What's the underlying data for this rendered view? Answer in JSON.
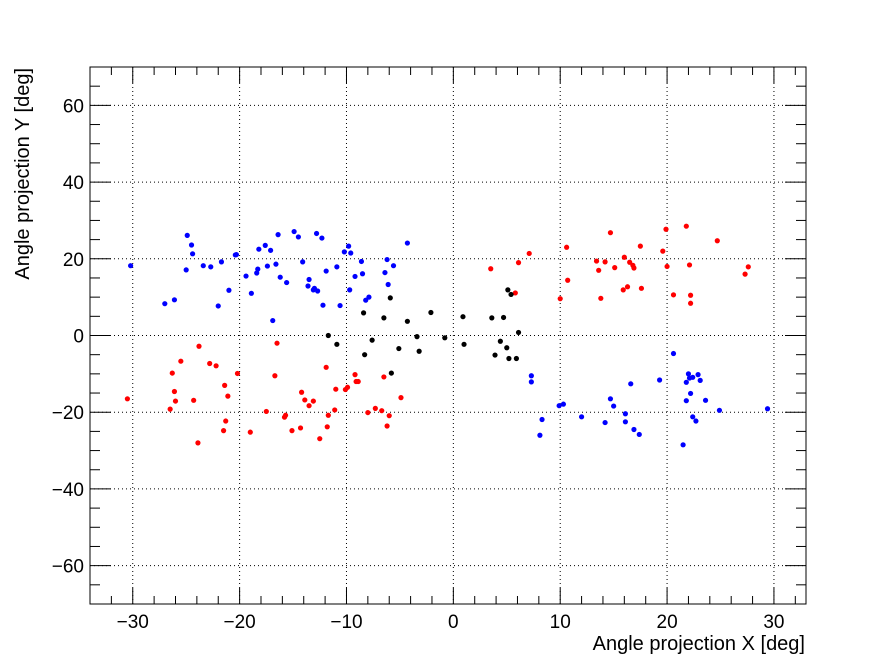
{
  "chart_data": {
    "type": "scatter",
    "title": "",
    "xlabel": "Angle projection X [deg]",
    "ylabel": "Angle projection Y [deg]",
    "xlim": [
      -34,
      33
    ],
    "ylim": [
      -70,
      70
    ],
    "x_ticks": [
      -30,
      -20,
      -10,
      0,
      10,
      20,
      30
    ],
    "y_ticks": [
      -60,
      -40,
      -20,
      0,
      20,
      40,
      60
    ],
    "x_tick_labels": [
      "−30",
      "−20",
      "−10",
      "0",
      "10",
      "20",
      "30"
    ],
    "y_tick_labels": [
      "−60",
      "−40",
      "−20",
      "0",
      "20",
      "40",
      "60"
    ],
    "grid": true,
    "colors": {
      "blue": "#0000ff",
      "red": "#ff0000",
      "black": "#000000"
    },
    "series": [
      {
        "color": "#0000ff",
        "points": [
          [
            -30.2,
            18.2
          ],
          [
            -27.0,
            8.3
          ],
          [
            -26.1,
            9.3
          ],
          [
            -25.0,
            17.1
          ],
          [
            -24.9,
            26.1
          ],
          [
            -24.5,
            23.6
          ],
          [
            -24.4,
            21.3
          ],
          [
            -23.4,
            18.2
          ],
          [
            -22.7,
            17.9
          ],
          [
            -22.0,
            7.7
          ],
          [
            -21.7,
            19.2
          ],
          [
            -21.0,
            11.8
          ],
          [
            -20.4,
            21.0
          ],
          [
            -20.3,
            21.1
          ],
          [
            -19.4,
            15.5
          ],
          [
            -18.9,
            11.0
          ],
          [
            -18.4,
            16.3
          ],
          [
            -18.3,
            17.3
          ],
          [
            -18.2,
            22.5
          ],
          [
            -17.6,
            23.5
          ],
          [
            -17.4,
            18.1
          ],
          [
            -17.1,
            22.2
          ],
          [
            -16.9,
            3.9
          ],
          [
            -16.6,
            18.6
          ],
          [
            -16.4,
            26.3
          ],
          [
            -16.2,
            15.2
          ],
          [
            -15.6,
            13.8
          ],
          [
            -14.9,
            27.1
          ],
          [
            -14.5,
            25.7
          ],
          [
            -14.1,
            19.2
          ],
          [
            -13.6,
            12.9
          ],
          [
            -13.5,
            14.6
          ],
          [
            -13.1,
            11.9
          ],
          [
            -13.0,
            12.3
          ],
          [
            -12.8,
            26.6
          ],
          [
            -12.7,
            11.6
          ],
          [
            -12.3,
            25.4
          ],
          [
            -12.2,
            7.9
          ],
          [
            -11.9,
            16.8
          ],
          [
            -10.9,
            17.9
          ],
          [
            -10.6,
            7.8
          ],
          [
            -10.2,
            21.8
          ],
          [
            -9.8,
            23.3
          ],
          [
            -9.7,
            11.9
          ],
          [
            -9.6,
            21.5
          ],
          [
            -9.2,
            15.4
          ],
          [
            -8.6,
            19.3
          ],
          [
            -8.5,
            16.1
          ],
          [
            -8.2,
            9.2
          ],
          [
            -7.9,
            10.0
          ],
          [
            -6.4,
            16.4
          ],
          [
            -6.2,
            19.8
          ],
          [
            -6.1,
            13.3
          ],
          [
            -5.6,
            18.2
          ],
          [
            -4.3,
            24.1
          ],
          [
            7.3,
            -10.5
          ],
          [
            7.3,
            -12.1
          ],
          [
            8.1,
            -26.0
          ],
          [
            8.3,
            -21.9
          ],
          [
            9.9,
            -18.3
          ],
          [
            10.3,
            -17.9
          ],
          [
            12.0,
            -21.2
          ],
          [
            14.2,
            -22.7
          ],
          [
            14.7,
            -16.5
          ],
          [
            15.0,
            -18.4
          ],
          [
            16.1,
            -22.5
          ],
          [
            16.1,
            -20.4
          ],
          [
            16.6,
            -12.6
          ],
          [
            16.9,
            -24.5
          ],
          [
            17.4,
            -25.8
          ],
          [
            19.3,
            -11.6
          ],
          [
            20.6,
            -4.7
          ],
          [
            21.5,
            -28.5
          ],
          [
            21.8,
            -12.2
          ],
          [
            21.8,
            -17.0
          ],
          [
            22.0,
            -10.0
          ],
          [
            22.1,
            -11.1
          ],
          [
            22.2,
            -15.1
          ],
          [
            22.4,
            -10.9
          ],
          [
            22.4,
            -21.2
          ],
          [
            22.7,
            -22.3
          ],
          [
            22.9,
            -10.2
          ],
          [
            23.1,
            -11.7
          ],
          [
            23.6,
            -16.9
          ],
          [
            24.9,
            -19.5
          ],
          [
            29.4,
            -19.1
          ]
        ]
      },
      {
        "color": "#ff0000",
        "points": [
          [
            -30.5,
            -16.5
          ],
          [
            -26.5,
            -19.2
          ],
          [
            -26.3,
            -9.8
          ],
          [
            -26.1,
            -14.6
          ],
          [
            -26.0,
            -17.1
          ],
          [
            -25.5,
            -6.7
          ],
          [
            -24.3,
            -16.9
          ],
          [
            -23.9,
            -28.0
          ],
          [
            -23.8,
            -2.8
          ],
          [
            -22.8,
            -7.3
          ],
          [
            -22.2,
            -7.9
          ],
          [
            -21.5,
            -24.8
          ],
          [
            -21.4,
            -13.0
          ],
          [
            -21.3,
            -22.3
          ],
          [
            -21.1,
            -15.8
          ],
          [
            -20.2,
            -9.9
          ],
          [
            -19.0,
            -25.2
          ],
          [
            -17.5,
            -19.8
          ],
          [
            -16.7,
            -10.5
          ],
          [
            -16.5,
            -2.0
          ],
          [
            -15.8,
            -21.3
          ],
          [
            -15.7,
            -20.8
          ],
          [
            -15.1,
            -24.8
          ],
          [
            -14.3,
            -24.1
          ],
          [
            -14.2,
            -14.8
          ],
          [
            -13.9,
            -16.8
          ],
          [
            -13.5,
            -18.3
          ],
          [
            -13.1,
            -17.1
          ],
          [
            -12.5,
            -26.9
          ],
          [
            -11.9,
            -8.3
          ],
          [
            -11.8,
            -23.8
          ],
          [
            -11.7,
            -20.8
          ],
          [
            -11.1,
            -19.4
          ],
          [
            -11.0,
            -14.0
          ],
          [
            -10.1,
            -14.1
          ],
          [
            -9.9,
            -13.5
          ],
          [
            -9.2,
            -10.2
          ],
          [
            -9.1,
            -12.0
          ],
          [
            -8.9,
            -12.0
          ],
          [
            -8.0,
            -20.1
          ],
          [
            -7.3,
            -19.0
          ],
          [
            -6.7,
            -19.6
          ],
          [
            -6.5,
            -10.8
          ],
          [
            -6.2,
            -23.6
          ],
          [
            -6.0,
            -20.9
          ],
          [
            -4.9,
            -16.2
          ],
          [
            3.5,
            17.4
          ],
          [
            5.8,
            11.1
          ],
          [
            6.1,
            19.0
          ],
          [
            7.1,
            21.4
          ],
          [
            10.0,
            9.6
          ],
          [
            10.6,
            23.0
          ],
          [
            10.7,
            14.4
          ],
          [
            13.4,
            19.4
          ],
          [
            13.6,
            17.0
          ],
          [
            13.8,
            9.7
          ],
          [
            14.2,
            19.2
          ],
          [
            14.7,
            26.8
          ],
          [
            15.1,
            17.7
          ],
          [
            15.9,
            11.9
          ],
          [
            16.0,
            20.4
          ],
          [
            16.3,
            12.7
          ],
          [
            16.5,
            19.1
          ],
          [
            16.8,
            18.3
          ],
          [
            16.9,
            17.6
          ],
          [
            17.5,
            23.3
          ],
          [
            17.6,
            12.3
          ],
          [
            19.6,
            22.0
          ],
          [
            19.9,
            27.7
          ],
          [
            20.0,
            18.0
          ],
          [
            20.6,
            10.6
          ],
          [
            21.8,
            28.5
          ],
          [
            22.1,
            18.4
          ],
          [
            22.2,
            8.4
          ],
          [
            22.2,
            10.5
          ],
          [
            24.7,
            24.7
          ],
          [
            27.3,
            16.0
          ],
          [
            27.6,
            17.9
          ]
        ]
      },
      {
        "color": "#000000",
        "points": [
          [
            -11.7,
            0.0
          ],
          [
            -10.9,
            -2.3
          ],
          [
            -8.4,
            5.9
          ],
          [
            -8.3,
            -5.0
          ],
          [
            -7.6,
            -1.2
          ],
          [
            -6.5,
            4.6
          ],
          [
            -5.9,
            9.8
          ],
          [
            -5.8,
            -9.8
          ],
          [
            -5.1,
            -3.4
          ],
          [
            -4.3,
            3.7
          ],
          [
            -3.4,
            -0.3
          ],
          [
            -3.2,
            -4.1
          ],
          [
            -2.1,
            6.0
          ],
          [
            -0.8,
            -0.6
          ],
          [
            0.9,
            4.9
          ],
          [
            1.0,
            -2.3
          ],
          [
            3.6,
            4.6
          ],
          [
            3.9,
            -5.1
          ],
          [
            4.4,
            -1.5
          ],
          [
            4.7,
            4.7
          ],
          [
            5.0,
            -3.2
          ],
          [
            5.1,
            11.9
          ],
          [
            5.2,
            -6.0
          ],
          [
            5.4,
            10.7
          ],
          [
            5.9,
            -6.0
          ],
          [
            6.1,
            0.8
          ]
        ]
      }
    ]
  }
}
